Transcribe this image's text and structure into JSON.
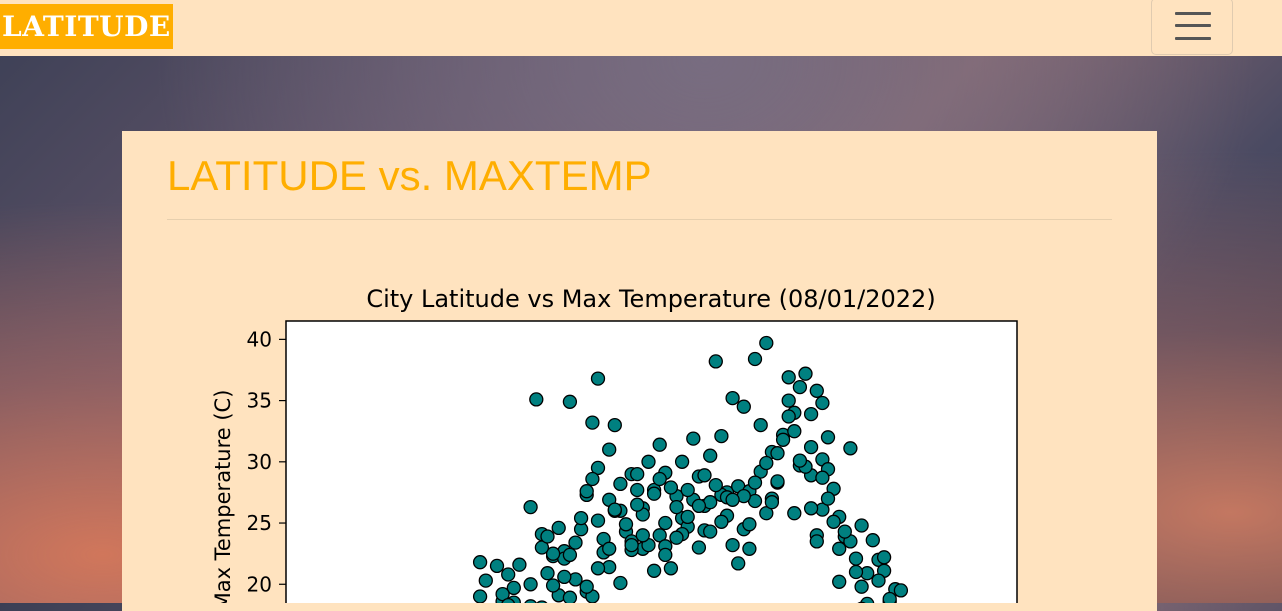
{
  "navbar": {
    "brand": "LATITUDE",
    "menu_icon": "hamburger-menu-icon"
  },
  "panel": {
    "title": "LATITUDE vs. MAXTEMP"
  },
  "colors": {
    "navbar_bg": "#ffe3bf",
    "brand_bg": "#ffae00",
    "title_color": "#ffae00",
    "marker_fill": "#008080",
    "marker_edge": "#000000"
  },
  "chart_data": {
    "type": "scatter",
    "title": "City Latitude vs Max Temperature (08/01/2022)",
    "xlabel": "",
    "ylabel": "Max Temperature (C)",
    "ylim": [
      17.0,
      41.5
    ],
    "xlim": [
      0,
      100
    ],
    "yticks": [
      20,
      25,
      30,
      35,
      40
    ],
    "ytick_labels": [
      "20",
      "25",
      "30",
      "35",
      "40"
    ],
    "grid": false,
    "marker": "circle",
    "x": [
      15,
      17,
      19,
      21,
      24,
      26,
      28,
      29,
      30,
      31,
      33,
      34,
      34,
      35,
      36,
      36,
      37,
      38,
      38,
      39,
      40,
      41,
      42,
      42,
      43,
      44,
      44,
      45,
      46,
      47,
      48,
      48,
      49,
      50,
      51,
      52,
      53,
      54,
      55,
      56,
      57,
      58,
      59,
      60,
      61,
      62,
      63,
      64,
      65,
      66,
      67,
      68,
      69,
      70,
      71,
      72,
      73,
      74,
      74,
      75,
      76,
      76,
      77,
      77,
      78,
      79,
      80,
      81,
      82,
      83,
      84,
      85,
      86,
      87,
      88,
      89,
      90,
      89,
      88,
      87,
      86,
      85,
      84,
      83,
      82,
      81,
      80,
      79,
      78,
      77,
      76,
      75,
      74,
      73,
      72,
      71,
      70,
      69,
      68,
      67,
      66,
      65,
      64,
      63,
      62,
      61,
      60,
      59,
      58,
      57,
      56,
      55,
      54,
      53,
      52,
      51,
      50,
      49,
      48,
      47,
      46,
      45,
      44,
      43,
      42,
      41,
      40,
      39,
      38,
      37,
      36,
      35,
      34,
      33,
      32,
      31,
      30,
      29,
      28,
      27,
      26,
      25,
      24,
      23,
      22,
      21,
      20,
      19,
      18,
      17,
      16,
      15,
      27,
      31,
      35,
      39,
      43,
      47,
      51,
      55,
      59,
      63,
      67,
      71,
      75,
      79,
      83,
      70,
      72,
      74,
      76,
      68,
      66,
      64,
      62,
      60,
      58,
      56,
      54,
      52,
      50,
      48,
      46,
      44,
      42,
      40,
      38,
      36,
      34,
      32,
      30,
      28,
      26,
      24,
      22,
      20,
      18
    ],
    "y": [
      19.0,
      17.6,
      18.6,
      19.7,
      26.3,
      24.1,
      22.3,
      19.1,
      22.7,
      18.9,
      24.5,
      27.3,
      19.4,
      33.2,
      36.8,
      29.5,
      22.6,
      31.0,
      26.9,
      33.0,
      26.0,
      24.3,
      29.0,
      23.5,
      27.7,
      26.2,
      22.9,
      30.0,
      27.7,
      24.0,
      23.1,
      29.1,
      21.3,
      27.2,
      25.4,
      24.7,
      31.9,
      28.8,
      26.4,
      30.5,
      38.2,
      32.1,
      27.5,
      35.2,
      28.0,
      34.5,
      27.6,
      38.4,
      33.0,
      39.7,
      30.8,
      28.3,
      32.2,
      36.9,
      34.0,
      29.7,
      37.2,
      33.9,
      28.9,
      35.8,
      30.2,
      26.1,
      32.0,
      29.4,
      27.8,
      25.5,
      23.9,
      31.1,
      22.1,
      24.8,
      20.9,
      23.6,
      22.0,
      21.1,
      18.6,
      19.6,
      19.5,
      17.9,
      18.8,
      22.2,
      20.3,
      17.6,
      18.4,
      19.8,
      21.0,
      23.5,
      24.3,
      22.9,
      25.1,
      27.0,
      28.7,
      24.0,
      26.2,
      29.6,
      30.1,
      32.5,
      35.0,
      31.8,
      28.4,
      27.0,
      25.8,
      29.2,
      26.8,
      22.9,
      24.5,
      21.7,
      23.2,
      25.6,
      27.3,
      28.1,
      26.7,
      24.4,
      23.0,
      26.9,
      25.5,
      24.1,
      26.3,
      27.9,
      25.0,
      28.6,
      27.4,
      23.2,
      25.7,
      26.5,
      22.8,
      24.9,
      28.2,
      26.0,
      21.4,
      23.7,
      25.2,
      19.0,
      27.6,
      25.4,
      20.4,
      34.9,
      22.1,
      24.6,
      22.5,
      20.9,
      23.0,
      35.1,
      18.2,
      17.7,
      21.6,
      18.5,
      20.8,
      19.2,
      21.5,
      17.3,
      20.3,
      21.8,
      23.9,
      22.4,
      28.6,
      26.1,
      29.0,
      31.4,
      30.0,
      28.9,
      27.1,
      24.9,
      26.7,
      25.8,
      23.5,
      20.2,
      18.0,
      33.7,
      36.1,
      31.2,
      34.8,
      30.7,
      29.9,
      28.3,
      27.2,
      26.9,
      25.1,
      24.3,
      26.4,
      27.7,
      23.8,
      22.4,
      21.1,
      24.0,
      23.2,
      20.1,
      22.9,
      21.3,
      19.8,
      23.4,
      20.6,
      19.9,
      18.1,
      20.0,
      17.6,
      18.3,
      17.9
    ]
  }
}
